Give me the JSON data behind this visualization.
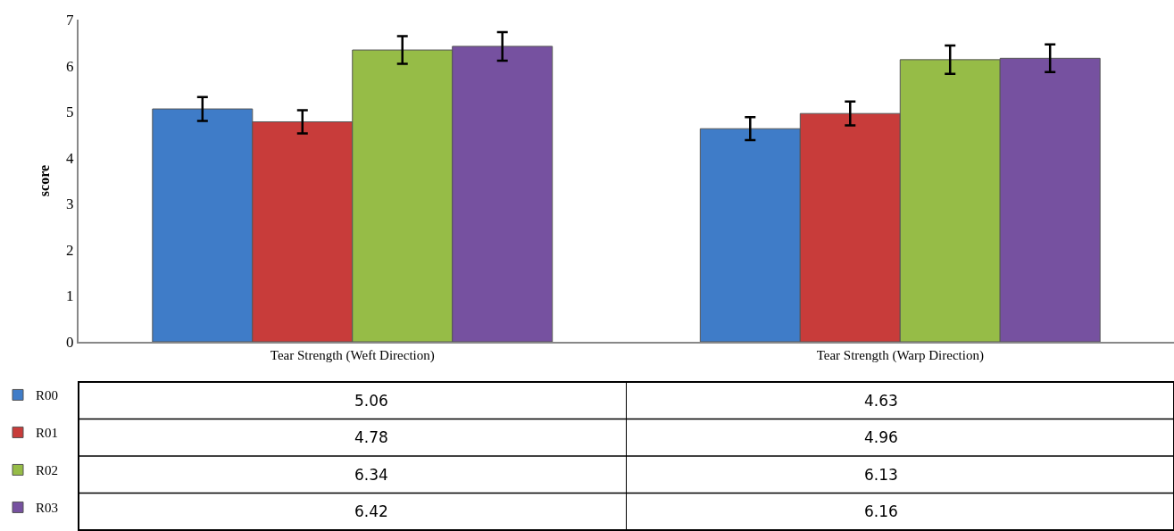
{
  "chart_data": {
    "type": "bar",
    "ylabel": "score",
    "categories": [
      "Tear Strength (Weft Direction)",
      "Tear Strength (Warp Direction)"
    ],
    "series": [
      {
        "name": "R00",
        "color": "#3f7cc8",
        "values": [
          5.06,
          4.63
        ],
        "errors": [
          0.26,
          0.25
        ]
      },
      {
        "name": "R01",
        "color": "#c83c3a",
        "values": [
          4.78,
          4.96
        ],
        "errors": [
          0.25,
          0.26
        ]
      },
      {
        "name": "R02",
        "color": "#96bc47",
        "values": [
          6.34,
          6.13
        ],
        "errors": [
          0.3,
          0.31
        ]
      },
      {
        "name": "R03",
        "color": "#7651a0",
        "values": [
          6.42,
          6.16
        ],
        "errors": [
          0.31,
          0.3
        ]
      }
    ],
    "ylim": [
      0,
      7
    ],
    "yticks": [
      0,
      1,
      2,
      3,
      4,
      5,
      6,
      7
    ],
    "legend": "bottom",
    "data_labels": true
  }
}
